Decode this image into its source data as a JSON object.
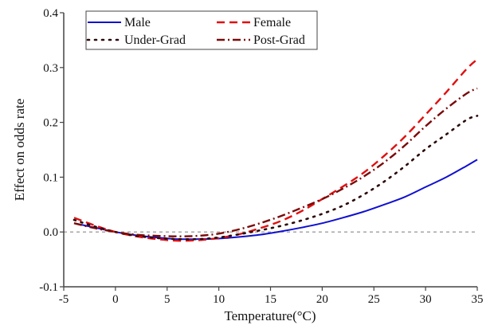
{
  "chart_data": {
    "type": "line",
    "title": "",
    "xlabel": "Temperature(°C)",
    "ylabel": "Effect on odds rate",
    "xlim": [
      -5,
      35
    ],
    "ylim": [
      -0.1,
      0.4
    ],
    "xticks": [
      -5,
      0,
      5,
      10,
      15,
      20,
      25,
      30,
      35
    ],
    "xtick_labels": [
      "-5",
      "0",
      "5",
      "10",
      "15",
      "20",
      "25",
      "30",
      "35"
    ],
    "yticks": [
      -0.1,
      0.0,
      0.1,
      0.2,
      0.3,
      0.4
    ],
    "ytick_labels": [
      "-0.1",
      "0.0",
      "0.1",
      "0.2",
      "0.3",
      "0.4"
    ],
    "grid": false,
    "reference_line": {
      "y": 0.0,
      "style": "dashed",
      "color": "#888888"
    },
    "legend_position": "top-left",
    "x": [
      -4,
      -2,
      0,
      2,
      4,
      6,
      8,
      10,
      12,
      14,
      16,
      18,
      20,
      22,
      24,
      26,
      28,
      30,
      32,
      34,
      35
    ],
    "series": [
      {
        "name": "Male",
        "color": "#1010d0",
        "style": "solid",
        "values": [
          0.016,
          0.008,
          0.0,
          -0.006,
          -0.01,
          -0.013,
          -0.013,
          -0.012,
          -0.009,
          -0.005,
          0.001,
          0.008,
          0.016,
          0.026,
          0.037,
          0.05,
          0.064,
          0.082,
          0.1,
          0.121,
          0.132
        ]
      },
      {
        "name": "Female",
        "color": "#e01010",
        "style": "dashed",
        "values": [
          0.026,
          0.012,
          0.0,
          -0.008,
          -0.013,
          -0.016,
          -0.015,
          -0.011,
          -0.004,
          0.007,
          0.02,
          0.038,
          0.06,
          0.083,
          0.108,
          0.139,
          0.174,
          0.214,
          0.255,
          0.298,
          0.315
        ]
      },
      {
        "name": "Under-Grad",
        "color": "#2a0a0a",
        "style": "dotted",
        "values": [
          0.022,
          0.01,
          0.0,
          -0.007,
          -0.011,
          -0.013,
          -0.013,
          -0.01,
          -0.004,
          0.003,
          0.011,
          0.021,
          0.033,
          0.048,
          0.068,
          0.092,
          0.12,
          0.151,
          0.178,
          0.205,
          0.212
        ]
      },
      {
        "name": "Post-Grad",
        "color": "#7a0a0a",
        "style": "dashdot",
        "values": [
          0.016,
          0.007,
          0.0,
          -0.005,
          -0.007,
          -0.008,
          -0.007,
          -0.003,
          0.005,
          0.016,
          0.029,
          0.044,
          0.06,
          0.079,
          0.101,
          0.127,
          0.158,
          0.193,
          0.225,
          0.253,
          0.262
        ]
      }
    ]
  }
}
